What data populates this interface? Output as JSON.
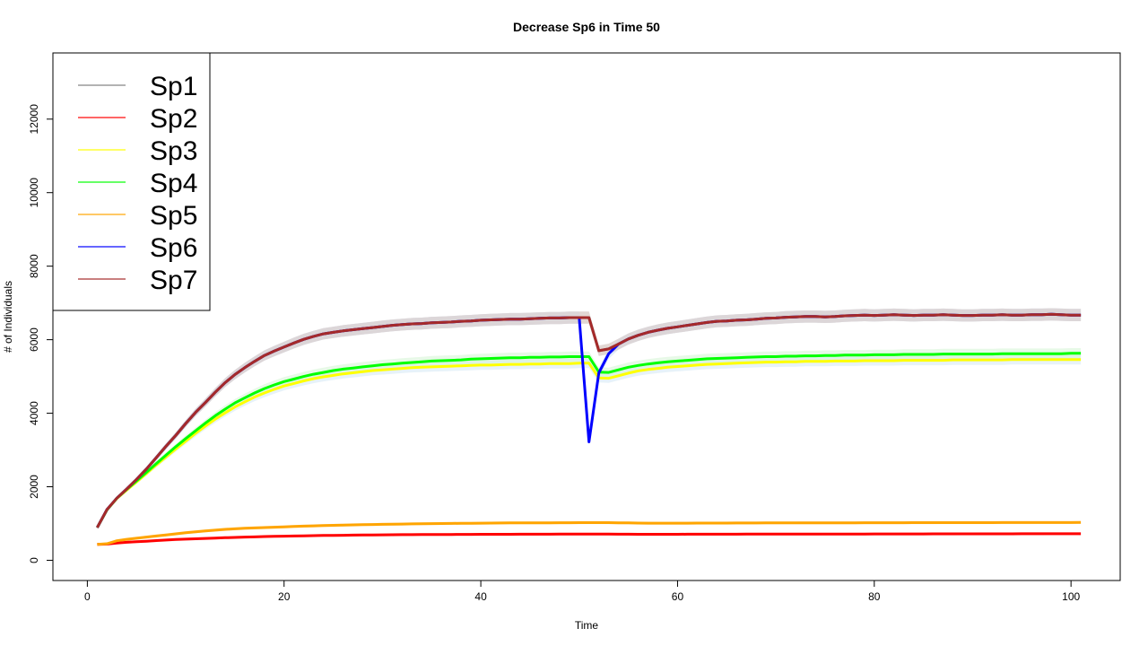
{
  "chart_data": {
    "type": "line",
    "title": "Decrease Sp6 in Time 50",
    "xlabel": "Time",
    "ylabel": "# of Individuals",
    "xlim": [
      -3.5,
      105
    ],
    "ylim": [
      -550,
      13800
    ],
    "xticks": [
      0,
      20,
      40,
      60,
      80,
      100
    ],
    "yticks": [
      0,
      2000,
      4000,
      6000,
      8000,
      10000,
      12000
    ],
    "grid": false,
    "legend_position": "top-left",
    "x": [
      1,
      2,
      3,
      4,
      5,
      6,
      7,
      8,
      9,
      10,
      11,
      12,
      13,
      14,
      15,
      16,
      17,
      18,
      19,
      20,
      21,
      22,
      23,
      24,
      25,
      26,
      27,
      28,
      29,
      30,
      31,
      32,
      33,
      34,
      35,
      36,
      37,
      38,
      39,
      40,
      41,
      42,
      43,
      44,
      45,
      46,
      47,
      48,
      49,
      50,
      51,
      52,
      53,
      54,
      55,
      56,
      57,
      58,
      59,
      60,
      61,
      62,
      63,
      64,
      65,
      66,
      67,
      68,
      69,
      70,
      71,
      72,
      73,
      74,
      75,
      76,
      77,
      78,
      79,
      80,
      81,
      82,
      83,
      84,
      85,
      86,
      87,
      88,
      89,
      90,
      91,
      92,
      93,
      94,
      95,
      96,
      97,
      98,
      99,
      100,
      101
    ],
    "series": [
      {
        "name": "Sp1",
        "color": "#808080",
        "band_color": "#c8c8c8",
        "values": [
          890,
          1380,
          1690,
          1940,
          2200,
          2480,
          2790,
          3100,
          3400,
          3720,
          4020,
          4290,
          4570,
          4830,
          5050,
          5240,
          5410,
          5570,
          5690,
          5800,
          5910,
          6010,
          6090,
          6160,
          6200,
          6240,
          6270,
          6300,
          6330,
          6360,
          6390,
          6410,
          6430,
          6440,
          6460,
          6470,
          6480,
          6500,
          6510,
          6530,
          6540,
          6550,
          6560,
          6560,
          6570,
          6580,
          6590,
          6590,
          6600,
          6600,
          6600,
          5700,
          5750,
          5880,
          6020,
          6120,
          6200,
          6260,
          6310,
          6350,
          6390,
          6430,
          6470,
          6500,
          6510,
          6530,
          6540,
          6560,
          6580,
          6590,
          6610,
          6620,
          6630,
          6630,
          6620,
          6630,
          6650,
          6660,
          6670,
          6660,
          6670,
          6680,
          6670,
          6660,
          6670,
          6670,
          6680,
          6670,
          6660,
          6660,
          6670,
          6670,
          6680,
          6670,
          6670,
          6680,
          6680,
          6690,
          6680,
          6670,
          6670
        ]
      },
      {
        "name": "Sp2",
        "color": "#ff0000",
        "band_color": "#ffc8c8",
        "values": [
          430,
          440,
          470,
          490,
          505,
          520,
          535,
          550,
          565,
          575,
          585,
          595,
          605,
          615,
          622,
          630,
          637,
          645,
          650,
          655,
          660,
          665,
          670,
          675,
          678,
          681,
          684,
          687,
          690,
          692,
          694,
          696,
          698,
          700,
          701,
          702,
          703,
          704,
          705,
          706,
          707,
          708,
          708,
          709,
          709,
          710,
          710,
          711,
          711,
          712,
          712,
          712,
          711,
          710,
          709,
          708,
          708,
          708,
          708,
          708,
          709,
          709,
          709,
          710,
          710,
          710,
          711,
          711,
          712,
          712,
          712,
          713,
          713,
          713,
          714,
          714,
          714,
          715,
          715,
          716,
          716,
          716,
          717,
          717,
          717,
          718,
          718,
          718,
          719,
          719,
          720,
          720,
          720,
          720,
          721,
          721,
          721,
          722,
          722,
          722,
          722
        ]
      },
      {
        "name": "Sp3",
        "color": "#ffff00",
        "band_color": "#d4e8f4",
        "values": [
          890,
          1370,
          1680,
          1910,
          2130,
          2360,
          2590,
          2810,
          3030,
          3240,
          3450,
          3650,
          3840,
          4010,
          4170,
          4310,
          4440,
          4550,
          4650,
          4740,
          4810,
          4880,
          4940,
          4990,
          5030,
          5070,
          5100,
          5130,
          5160,
          5180,
          5200,
          5220,
          5240,
          5250,
          5260,
          5270,
          5280,
          5290,
          5300,
          5310,
          5310,
          5320,
          5330,
          5330,
          5340,
          5340,
          5350,
          5350,
          5350,
          5360,
          5360,
          4960,
          4950,
          5020,
          5090,
          5150,
          5190,
          5220,
          5250,
          5270,
          5290,
          5310,
          5330,
          5340,
          5350,
          5360,
          5370,
          5380,
          5390,
          5390,
          5400,
          5400,
          5410,
          5410,
          5410,
          5420,
          5420,
          5420,
          5430,
          5430,
          5430,
          5430,
          5440,
          5440,
          5440,
          5440,
          5440,
          5450,
          5450,
          5450,
          5450,
          5450,
          5450,
          5460,
          5460,
          5460,
          5460,
          5460,
          5460,
          5460,
          5460
        ]
      },
      {
        "name": "Sp4",
        "color": "#00ff00",
        "band_color": "#d4f4d4",
        "values": [
          890,
          1370,
          1690,
          1930,
          2160,
          2390,
          2630,
          2860,
          3090,
          3310,
          3520,
          3730,
          3930,
          4110,
          4280,
          4420,
          4550,
          4670,
          4770,
          4860,
          4930,
          5000,
          5060,
          5110,
          5160,
          5200,
          5230,
          5260,
          5290,
          5320,
          5340,
          5360,
          5380,
          5400,
          5420,
          5430,
          5440,
          5450,
          5470,
          5480,
          5490,
          5500,
          5510,
          5510,
          5520,
          5520,
          5530,
          5530,
          5540,
          5540,
          5540,
          5120,
          5110,
          5180,
          5250,
          5300,
          5340,
          5370,
          5400,
          5420,
          5440,
          5460,
          5480,
          5490,
          5500,
          5510,
          5520,
          5530,
          5540,
          5540,
          5550,
          5550,
          5560,
          5560,
          5570,
          5570,
          5580,
          5580,
          5580,
          5590,
          5590,
          5590,
          5600,
          5600,
          5600,
          5600,
          5610,
          5610,
          5610,
          5610,
          5610,
          5610,
          5620,
          5620,
          5620,
          5620,
          5620,
          5620,
          5620,
          5630,
          5630
        ]
      },
      {
        "name": "Sp5",
        "color": "#ffa500",
        "band_color": "#f4e0c8",
        "values": [
          430,
          450,
          530,
          570,
          600,
          630,
          660,
          690,
          720,
          750,
          775,
          800,
          820,
          840,
          855,
          870,
          880,
          890,
          900,
          910,
          920,
          930,
          937,
          944,
          950,
          956,
          962,
          968,
          973,
          978,
          982,
          986,
          990,
          994,
          997,
          1000,
          1003,
          1006,
          1008,
          1010,
          1012,
          1014,
          1016,
          1017,
          1018,
          1019,
          1020,
          1021,
          1022,
          1023,
          1024,
          1024,
          1023,
          1020,
          1016,
          1012,
          1010,
          1009,
          1009,
          1010,
          1010,
          1011,
          1012,
          1012,
          1013,
          1014,
          1014,
          1015,
          1016,
          1016,
          1017,
          1017,
          1018,
          1018,
          1019,
          1019,
          1020,
          1020,
          1021,
          1021,
          1022,
          1022,
          1022,
          1023,
          1023,
          1023,
          1024,
          1024,
          1024,
          1025,
          1025,
          1025,
          1026,
          1026,
          1026,
          1026,
          1027,
          1027,
          1027,
          1027,
          1028
        ]
      },
      {
        "name": "Sp6",
        "color": "#0000ff",
        "band_color": "#c8dcf4",
        "values": [
          890,
          1380,
          1690,
          1940,
          2200,
          2480,
          2790,
          3100,
          3400,
          3720,
          4020,
          4290,
          4570,
          4830,
          5050,
          5240,
          5410,
          5570,
          5690,
          5800,
          5910,
          6010,
          6090,
          6160,
          6200,
          6240,
          6270,
          6300,
          6330,
          6360,
          6390,
          6410,
          6430,
          6440,
          6460,
          6470,
          6480,
          6500,
          6510,
          6530,
          6540,
          6550,
          6560,
          6560,
          6570,
          6580,
          6590,
          6590,
          6600,
          6600,
          3220,
          5100,
          5620,
          5880,
          6020,
          6120,
          6200,
          6260,
          6310,
          6350,
          6390,
          6430,
          6470,
          6500,
          6510,
          6530,
          6540,
          6560,
          6580,
          6590,
          6610,
          6620,
          6630,
          6630,
          6620,
          6630,
          6650,
          6660,
          6670,
          6660,
          6670,
          6680,
          6670,
          6660,
          6670,
          6670,
          6680,
          6670,
          6660,
          6660,
          6670,
          6670,
          6680,
          6670,
          6670,
          6680,
          6680,
          6690,
          6680,
          6670,
          6670
        ]
      },
      {
        "name": "Sp7",
        "color": "#a52a2a",
        "band_color": "#e4d0c8",
        "values": [
          890,
          1380,
          1690,
          1940,
          2200,
          2480,
          2790,
          3100,
          3400,
          3720,
          4020,
          4290,
          4570,
          4830,
          5050,
          5240,
          5410,
          5570,
          5690,
          5800,
          5910,
          6010,
          6090,
          6160,
          6200,
          6240,
          6270,
          6300,
          6330,
          6360,
          6390,
          6410,
          6430,
          6440,
          6460,
          6470,
          6480,
          6500,
          6510,
          6530,
          6540,
          6550,
          6560,
          6560,
          6570,
          6580,
          6590,
          6590,
          6600,
          6600,
          6600,
          5700,
          5750,
          5880,
          6020,
          6120,
          6200,
          6260,
          6310,
          6350,
          6390,
          6430,
          6470,
          6500,
          6510,
          6530,
          6540,
          6560,
          6580,
          6590,
          6610,
          6620,
          6630,
          6630,
          6620,
          6630,
          6650,
          6660,
          6670,
          6660,
          6670,
          6680,
          6670,
          6660,
          6670,
          6670,
          6680,
          6670,
          6660,
          6660,
          6670,
          6670,
          6680,
          6670,
          6670,
          6680,
          6680,
          6690,
          6680,
          6670,
          6670
        ]
      }
    ]
  }
}
